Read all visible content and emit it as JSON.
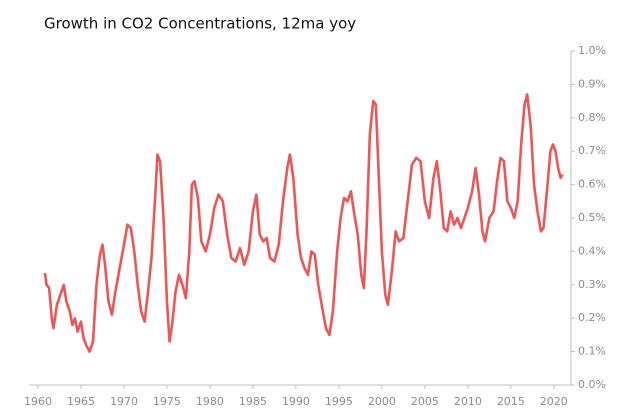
{
  "chart_data": {
    "type": "line",
    "title": "Growth in CO2 Concentrations, 12ma yoy",
    "color": "#ee5555",
    "x": [
      1960.8,
      1961.0,
      1961.3,
      1961.6,
      1961.8,
      1962.2,
      1962.6,
      1963.0,
      1963.3,
      1963.7,
      1964.0,
      1964.3,
      1964.6,
      1965.0,
      1965.3,
      1965.6,
      1966.0,
      1966.4,
      1966.8,
      1967.2,
      1967.5,
      1967.8,
      1968.2,
      1968.6,
      1969.0,
      1969.5,
      1970.0,
      1970.4,
      1970.8,
      1971.2,
      1971.6,
      1972.0,
      1972.4,
      1972.8,
      1973.2,
      1973.6,
      1973.9,
      1974.2,
      1974.6,
      1975.0,
      1975.3,
      1975.6,
      1976.0,
      1976.4,
      1976.8,
      1977.2,
      1977.6,
      1977.9,
      1978.2,
      1978.6,
      1979.0,
      1979.5,
      1980.0,
      1980.5,
      1981.0,
      1981.5,
      1982.0,
      1982.5,
      1983.0,
      1983.5,
      1984.0,
      1984.5,
      1985.0,
      1985.4,
      1985.8,
      1986.2,
      1986.6,
      1987.0,
      1987.5,
      1988.0,
      1988.5,
      1989.0,
      1989.3,
      1989.7,
      1990.2,
      1990.6,
      1991.0,
      1991.4,
      1991.8,
      1992.2,
      1992.6,
      1993.0,
      1993.5,
      1993.9,
      1994.3,
      1994.8,
      1995.2,
      1995.6,
      1996.0,
      1996.4,
      1996.8,
      1997.2,
      1997.6,
      1997.9,
      1998.2,
      1998.6,
      1999.0,
      1999.3,
      1999.6,
      2000.0,
      2000.4,
      2000.7,
      2001.2,
      2001.6,
      2002.0,
      2002.5,
      2003.0,
      2003.5,
      2004.0,
      2004.5,
      2005.0,
      2005.5,
      2006.0,
      2006.4,
      2006.8,
      2007.2,
      2007.6,
      2008.0,
      2008.4,
      2008.8,
      2009.2,
      2009.6,
      2010.0,
      2010.5,
      2010.9,
      2011.3,
      2011.7,
      2012.0,
      2012.5,
      2013.0,
      2013.4,
      2013.8,
      2014.2,
      2014.6,
      2015.0,
      2015.4,
      2015.8,
      2016.2,
      2016.6,
      2016.9,
      2017.3,
      2017.7,
      2018.1,
      2018.5,
      2018.8,
      2019.2,
      2019.6,
      2019.9,
      2020.2,
      2020.5,
      2020.8,
      2021.0
    ],
    "values": [
      0.335,
      0.3,
      0.29,
      0.2,
      0.17,
      0.24,
      0.27,
      0.3,
      0.25,
      0.22,
      0.18,
      0.2,
      0.16,
      0.19,
      0.14,
      0.12,
      0.1,
      0.13,
      0.3,
      0.39,
      0.42,
      0.36,
      0.25,
      0.21,
      0.28,
      0.35,
      0.42,
      0.48,
      0.47,
      0.4,
      0.3,
      0.22,
      0.19,
      0.28,
      0.38,
      0.55,
      0.69,
      0.67,
      0.5,
      0.25,
      0.13,
      0.18,
      0.28,
      0.33,
      0.3,
      0.26,
      0.4,
      0.6,
      0.61,
      0.56,
      0.43,
      0.4,
      0.45,
      0.53,
      0.57,
      0.55,
      0.45,
      0.38,
      0.37,
      0.41,
      0.36,
      0.4,
      0.52,
      0.57,
      0.45,
      0.43,
      0.44,
      0.38,
      0.37,
      0.42,
      0.55,
      0.65,
      0.69,
      0.62,
      0.45,
      0.38,
      0.35,
      0.33,
      0.4,
      0.39,
      0.3,
      0.24,
      0.17,
      0.15,
      0.22,
      0.4,
      0.5,
      0.56,
      0.55,
      0.58,
      0.51,
      0.45,
      0.33,
      0.29,
      0.45,
      0.75,
      0.85,
      0.84,
      0.65,
      0.4,
      0.27,
      0.24,
      0.35,
      0.46,
      0.43,
      0.44,
      0.55,
      0.66,
      0.68,
      0.67,
      0.55,
      0.5,
      0.62,
      0.67,
      0.58,
      0.47,
      0.46,
      0.52,
      0.48,
      0.5,
      0.47,
      0.5,
      0.53,
      0.58,
      0.65,
      0.57,
      0.46,
      0.43,
      0.5,
      0.52,
      0.61,
      0.68,
      0.67,
      0.55,
      0.53,
      0.5,
      0.55,
      0.72,
      0.84,
      0.87,
      0.78,
      0.6,
      0.52,
      0.46,
      0.47,
      0.58,
      0.7,
      0.72,
      0.7,
      0.65,
      0.62,
      0.63
    ],
    "xlim": [
      1959,
      2022
    ],
    "xticks": [
      1960,
      1965,
      1970,
      1975,
      1980,
      1985,
      1990,
      1995,
      2000,
      2005,
      2010,
      2015,
      2020
    ],
    "ylim": [
      0,
      1.0
    ],
    "yticks": [
      {
        "value": 0,
        "label": "0.0%"
      },
      {
        "value": 0.1,
        "label": "0.1%"
      },
      {
        "value": 0.2,
        "label": "0.2%"
      },
      {
        "value": 0.3,
        "label": "0.3%"
      },
      {
        "value": 0.4,
        "label": "0.4%"
      },
      {
        "value": 0.5,
        "label": "0.5%"
      },
      {
        "value": 0.6,
        "label": "0.6%"
      },
      {
        "value": 0.7,
        "label": "0.7%"
      },
      {
        "value": 0.8,
        "label": "0.8%"
      },
      {
        "value": 0.9,
        "label": "0.9%"
      },
      {
        "value": 1.0,
        "label": "1.0%"
      }
    ],
    "y_axis_side": "right",
    "grid": false
  }
}
